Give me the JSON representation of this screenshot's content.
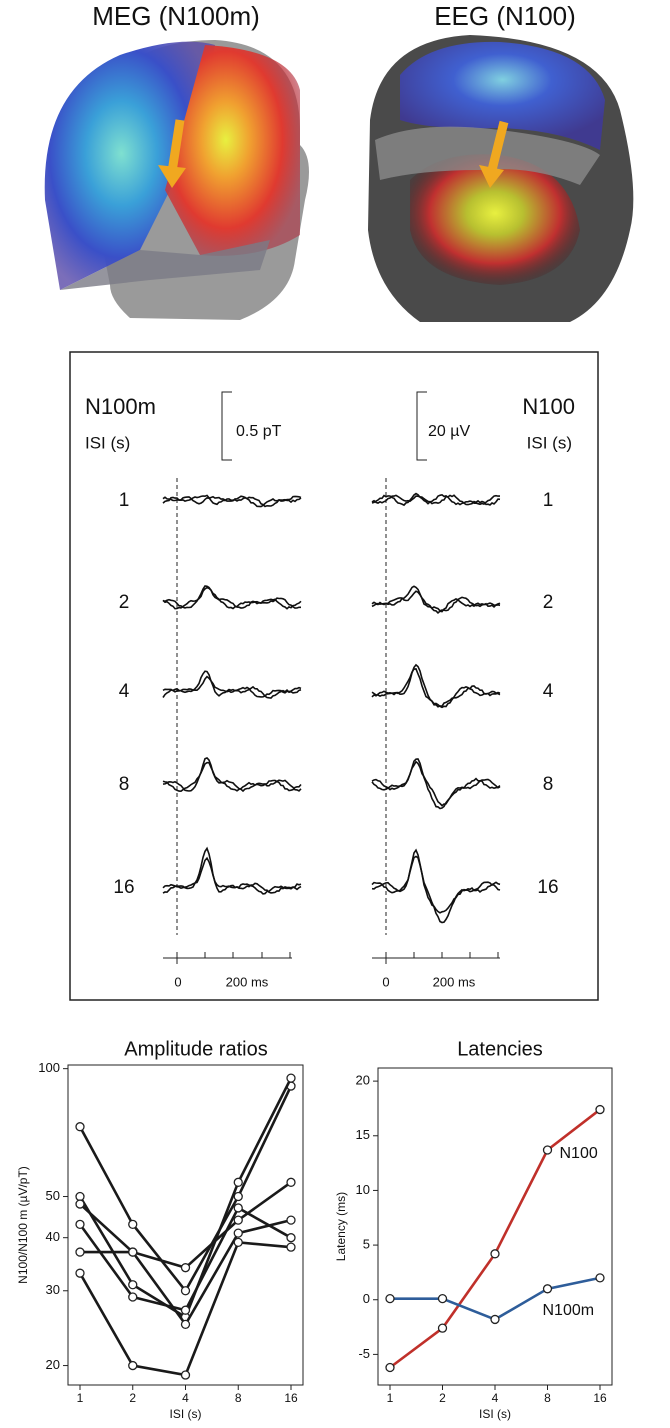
{
  "panels": {
    "meg_title": "MEG (N100m)",
    "eeg_title": "EEG (N100)"
  },
  "waveforms": {
    "left": {
      "label": "N100m",
      "isi_label": "ISI (s)",
      "scale": "0.5 pT",
      "time_labels": [
        "0",
        "200 ms"
      ]
    },
    "right": {
      "label": "N100",
      "isi_label": "ISI (s)",
      "scale": "20 µV",
      "time_labels": [
        "0",
        "200 ms"
      ]
    },
    "isi": [
      "1",
      "2",
      "4",
      "8",
      "16"
    ]
  },
  "chart_data": [
    {
      "type": "line",
      "title": "Amplitude ratios",
      "x_label": "ISI (s)",
      "y_label": "N100/N100 m (µV/pT)",
      "categories": [
        "1",
        "2",
        "4",
        "8",
        "16"
      ],
      "log_y": true,
      "ylim": [
        18,
        102
      ],
      "yticks": [
        20,
        30,
        40,
        50,
        100
      ],
      "series": [
        {
          "color": "#1a1a1a",
          "values": [
            73,
            43,
            30,
            50,
            91
          ]
        },
        {
          "color": "#1a1a1a",
          "values": [
            50,
            31,
            26,
            54,
            95
          ]
        },
        {
          "color": "#1a1a1a",
          "values": [
            48,
            37,
            34,
            44,
            54
          ]
        },
        {
          "color": "#1a1a1a",
          "values": [
            43,
            29,
            27,
            47,
            40
          ]
        },
        {
          "color": "#1a1a1a",
          "values": [
            37,
            37,
            25,
            41,
            44
          ]
        },
        {
          "color": "#1a1a1a",
          "values": [
            33,
            20,
            19,
            39,
            38
          ]
        }
      ]
    },
    {
      "type": "line",
      "title": "Latencies",
      "x_label": "ISI (s)",
      "y_label": "Latency (ms)",
      "categories": [
        "1",
        "2",
        "4",
        "8",
        "16"
      ],
      "log_y": false,
      "ylim": [
        -7.8,
        21.2
      ],
      "yticks": [
        -5,
        0,
        5,
        10,
        15,
        20
      ],
      "series": [
        {
          "name": "N100",
          "color": "#c0302a",
          "values": [
            -6.2,
            -2.6,
            4.2,
            13.7,
            17.4
          ]
        },
        {
          "name": "N100m",
          "color": "#2e5d9a",
          "values": [
            0.1,
            0.1,
            -1.8,
            1,
            2
          ]
        }
      ]
    }
  ]
}
